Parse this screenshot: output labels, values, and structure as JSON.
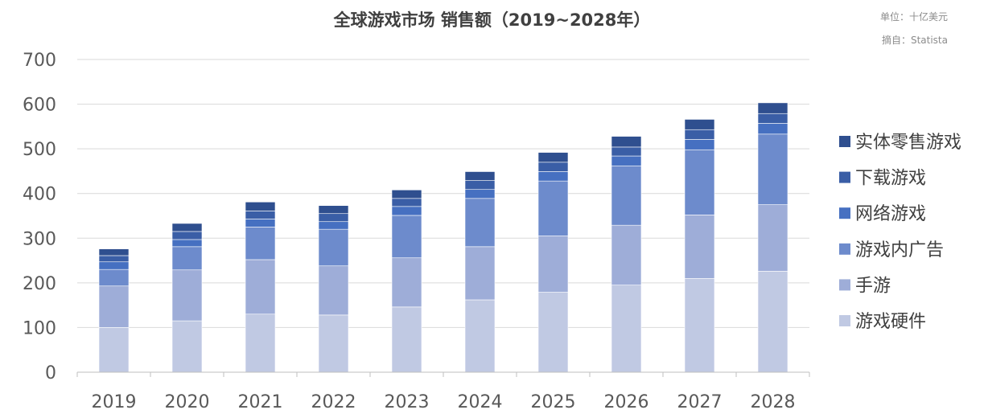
{
  "chart_data": {
    "type": "bar",
    "stacked": true,
    "title": "全球游戏市场 销售额（2019~2028年）",
    "unit_note": "单位：十亿美元",
    "source_note": "摘自：Statista",
    "categories": [
      "2019",
      "2020",
      "2021",
      "2022",
      "2023",
      "2024",
      "2025",
      "2026",
      "2027",
      "2028"
    ],
    "ylim": [
      0,
      700
    ],
    "yticks": [
      0,
      100,
      200,
      300,
      400,
      500,
      600,
      700
    ],
    "grid": true,
    "legend_position": "right",
    "series": [
      {
        "name": "游戏硬件",
        "color": "#c0c9e3",
        "values": [
          100,
          115,
          130,
          128,
          146,
          162,
          179,
          195,
          210,
          226
        ]
      },
      {
        "name": "手游",
        "color": "#9eadd8",
        "values": [
          93,
          114,
          122,
          110,
          110,
          119,
          126,
          134,
          142,
          149
        ]
      },
      {
        "name": "游戏内广告",
        "color": "#6d8bcc",
        "values": [
          37,
          52,
          73,
          82,
          95,
          108,
          123,
          133,
          146,
          158
        ]
      },
      {
        "name": "网络游戏",
        "color": "#4670c1",
        "values": [
          17,
          16,
          18,
          17,
          20,
          20,
          21,
          22,
          23,
          24
        ]
      },
      {
        "name": "下载游戏",
        "color": "#3a5ea6",
        "values": [
          14,
          18,
          18,
          18,
          18,
          20,
          21,
          20,
          22,
          22
        ]
      },
      {
        "name": "实体零售游戏",
        "color": "#2f4f8f",
        "values": [
          15,
          18,
          20,
          18,
          19,
          20,
          22,
          24,
          23,
          24
        ]
      }
    ]
  }
}
